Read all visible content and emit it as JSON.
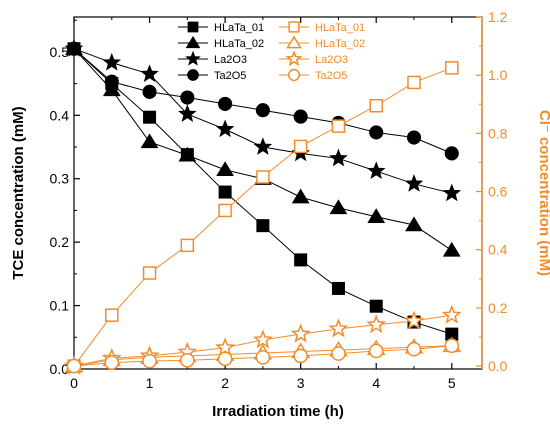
{
  "chart_data": {
    "type": "scatter",
    "xlabel": "Irradiation time (h)",
    "ylabel_left": "TCE concentration (mM)",
    "ylabel_right": "Cl⁻ concentration (mM)",
    "x_ticks": [
      "0",
      "1",
      "2",
      "3",
      "4",
      "5"
    ],
    "y_left_ticks": [
      "0.0",
      "0.1",
      "0.2",
      "0.3",
      "0.4",
      "0.5"
    ],
    "y_right_ticks": [
      "0.0",
      "0.2",
      "0.4",
      "0.6",
      "0.8",
      "1.0",
      "1.2"
    ],
    "xlim": [
      0,
      5.4
    ],
    "ylim_left": [
      0,
      0.555
    ],
    "ylim_right": [
      -0.01,
      1.2
    ],
    "colors": {
      "tce": "#000000",
      "chloride": "#f28c28"
    },
    "x": [
      0,
      0.5,
      1,
      1.5,
      2,
      2.5,
      3,
      3.5,
      4,
      4.5,
      5
    ],
    "legend_left": {
      "placement": "top-center",
      "entries": [
        "HLaTa_01",
        "HLaTa_02",
        "La2O3",
        "Ta2O5"
      ]
    },
    "legend_right": {
      "placement": "top-right",
      "entries": [
        "HLaTa_01",
        "HLaTa_02",
        "La2O3",
        "Ta2O5"
      ]
    },
    "series": [
      {
        "name": "HLaTa_01",
        "axis": "left",
        "marker": "square",
        "filled": true,
        "values": [
          0.505,
          0.45,
          0.397,
          0.338,
          0.279,
          0.226,
          0.172,
          0.127,
          0.099,
          0.074,
          0.055
        ]
      },
      {
        "name": "HLaTa_02",
        "axis": "left",
        "marker": "triangle",
        "filled": true,
        "values": [
          0.505,
          0.44,
          0.358,
          0.337,
          0.314,
          0.3,
          0.271,
          0.254,
          0.24,
          0.227,
          0.187
        ]
      },
      {
        "name": "La2O3",
        "axis": "left",
        "marker": "star",
        "filled": true,
        "values": [
          0.505,
          0.483,
          0.465,
          0.402,
          0.378,
          0.35,
          0.34,
          0.332,
          0.312,
          0.292,
          0.277
        ]
      },
      {
        "name": "Ta2O5",
        "axis": "left",
        "marker": "circle",
        "filled": true,
        "values": [
          0.505,
          0.453,
          0.437,
          0.428,
          0.418,
          0.408,
          0.398,
          0.388,
          0.373,
          0.365,
          0.34
        ]
      },
      {
        "name": "HLaTa_01",
        "axis": "right",
        "marker": "square",
        "filled": false,
        "values": [
          0.0,
          0.175,
          0.32,
          0.415,
          0.535,
          0.65,
          0.755,
          0.825,
          0.895,
          0.975,
          1.025
        ]
      },
      {
        "name": "HLaTa_02",
        "axis": "right",
        "marker": "triangle",
        "filled": false,
        "values": [
          0.0,
          0.022,
          0.03,
          0.035,
          0.04,
          0.045,
          0.05,
          0.055,
          0.06,
          0.065,
          0.07
        ]
      },
      {
        "name": "La2O3",
        "axis": "right",
        "marker": "star",
        "filled": false,
        "values": [
          0.0,
          0.027,
          0.035,
          0.048,
          0.063,
          0.09,
          0.11,
          0.128,
          0.142,
          0.155,
          0.175
        ]
      },
      {
        "name": "Ta2O5",
        "axis": "right",
        "marker": "circle",
        "filled": false,
        "values": [
          0.0,
          0.012,
          0.017,
          0.02,
          0.025,
          0.03,
          0.035,
          0.043,
          0.052,
          0.058,
          0.07
        ]
      }
    ]
  }
}
